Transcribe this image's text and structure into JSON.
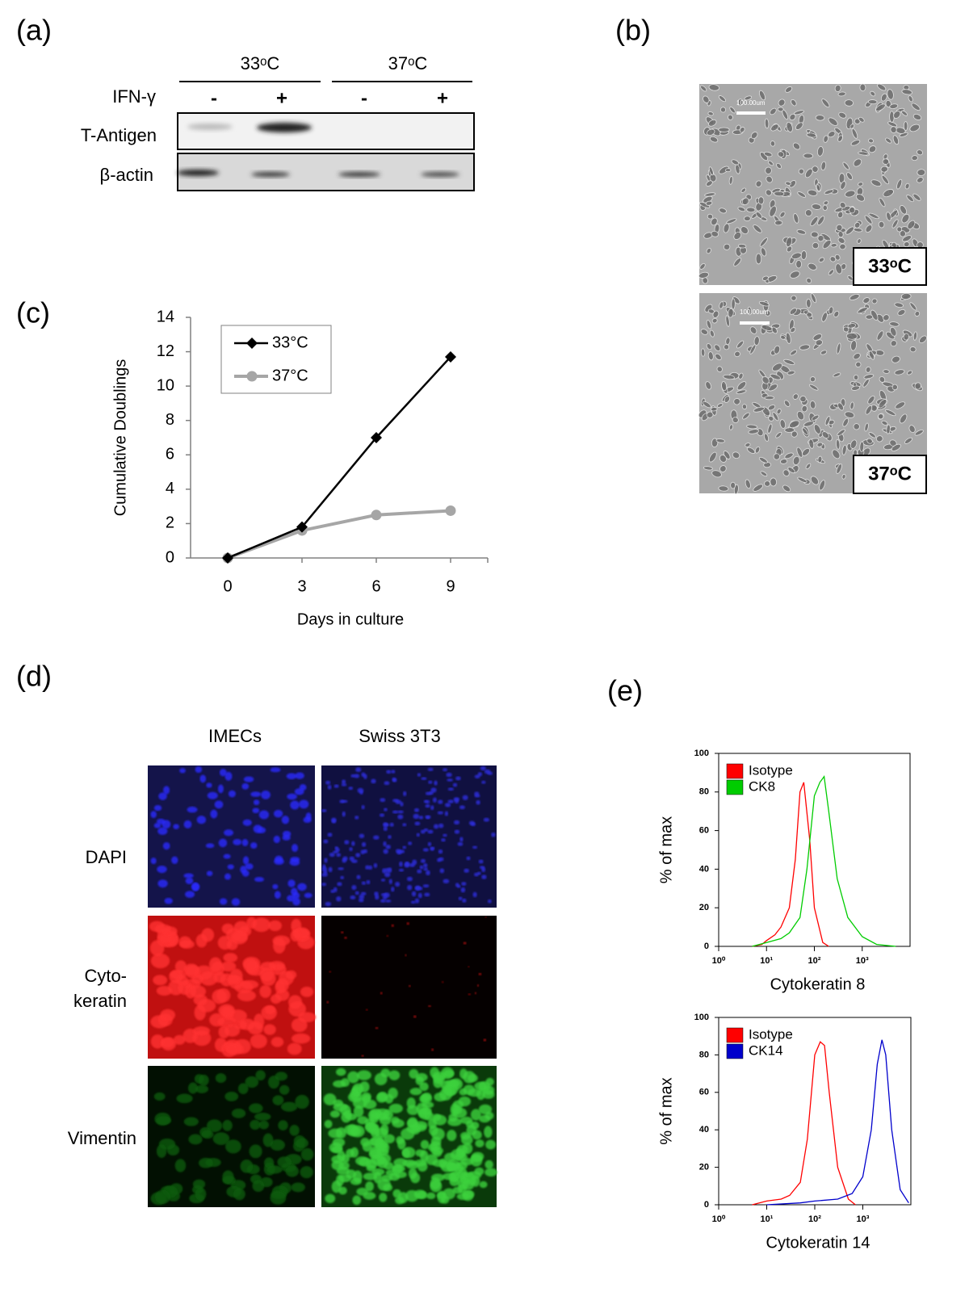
{
  "panel_labels": {
    "a": "(a)",
    "b": "(b)",
    "c": "(c)",
    "d": "(d)",
    "e": "(e)"
  },
  "western_blot": {
    "conditions": [
      "33ᵒC",
      "37ᵒC"
    ],
    "treatment_label": "IFN-γ",
    "treatments": [
      "-",
      "+",
      "-",
      "+"
    ],
    "rows": [
      "T-Antigen",
      "β-actin"
    ]
  },
  "micrographs": {
    "labels": [
      "33ᵒC",
      "37ᵒC"
    ],
    "scale_bar": "100.00um"
  },
  "immunofluorescence": {
    "columns": [
      "IMECs",
      "Swiss 3T3"
    ],
    "rows": [
      [
        "DAPI"
      ],
      [
        "Cyto-",
        "keratin"
      ],
      [
        "Vimentin"
      ]
    ]
  },
  "chart_data": [
    {
      "type": "line",
      "x_label": "Days in culture",
      "y_label": "Cumulative Doublings",
      "x": [
        0,
        3,
        6,
        9
      ],
      "xlim": [
        -1.5,
        10.5
      ],
      "xticks": [
        0,
        3,
        6,
        9
      ],
      "ylim": [
        0,
        14
      ],
      "yticks": [
        0,
        2,
        4,
        6,
        8,
        10,
        12,
        14
      ],
      "series": [
        {
          "name": "33°C",
          "color": "#000000",
          "marker": "diamond",
          "values": [
            0,
            1.8,
            7,
            11.7
          ]
        },
        {
          "name": "37°C",
          "color": "#a6a6a6",
          "marker": "circle",
          "values": [
            0,
            1.6,
            2.5,
            2.75
          ]
        }
      ]
    },
    {
      "type": "histogram-line",
      "xscale": "log",
      "x_label": "Cytokeratin 8",
      "y_label": "% of max",
      "xlim": [
        1,
        10000
      ],
      "xticks": [
        {
          "value": 1,
          "label": "10⁰"
        },
        {
          "value": 10,
          "label": "10¹"
        },
        {
          "value": 100,
          "label": "10²"
        },
        {
          "value": 1000,
          "label": "10³"
        }
      ],
      "ylim": [
        0,
        100
      ],
      "yticks": [
        0,
        20,
        40,
        60,
        80,
        100
      ],
      "series": [
        {
          "name": "Isotype",
          "color": "#ff0000",
          "x": [
            5,
            8,
            10,
            15,
            20,
            30,
            40,
            50,
            60,
            80,
            100,
            150,
            200
          ],
          "values": [
            0,
            1,
            3,
            6,
            10,
            20,
            45,
            80,
            85,
            55,
            20,
            2,
            0
          ]
        },
        {
          "name": "CK8",
          "color": "#00cc00",
          "x": [
            5,
            10,
            20,
            30,
            50,
            70,
            100,
            130,
            160,
            200,
            300,
            500,
            1000,
            2000,
            5000
          ],
          "values": [
            0,
            2,
            4,
            7,
            15,
            40,
            78,
            85,
            88,
            70,
            35,
            15,
            5,
            1,
            0
          ]
        }
      ]
    },
    {
      "type": "histogram-line",
      "xscale": "log",
      "x_label": "Cytokeratin 14",
      "y_label": "% of max",
      "xlim": [
        1,
        10000
      ],
      "xticks": [
        {
          "value": 1,
          "label": "10⁰"
        },
        {
          "value": 10,
          "label": "10¹"
        },
        {
          "value": 100,
          "label": "10²"
        },
        {
          "value": 1000,
          "label": "10³"
        }
      ],
      "ylim": [
        0,
        100
      ],
      "yticks": [
        0,
        20,
        40,
        60,
        80,
        100
      ],
      "series": [
        {
          "name": "Isotype",
          "color": "#ff0000",
          "x": [
            5,
            10,
            20,
            30,
            50,
            70,
            100,
            130,
            160,
            200,
            300,
            500,
            700
          ],
          "values": [
            0,
            2,
            3,
            5,
            12,
            35,
            80,
            87,
            85,
            60,
            20,
            3,
            0
          ]
        },
        {
          "name": "CK14",
          "color": "#0000cc",
          "x": [
            10,
            50,
            100,
            300,
            600,
            1000,
            1500,
            2000,
            2500,
            3000,
            4000,
            6000,
            9000
          ],
          "values": [
            0,
            1,
            2,
            3,
            6,
            15,
            40,
            75,
            88,
            80,
            40,
            8,
            1
          ]
        }
      ]
    }
  ]
}
